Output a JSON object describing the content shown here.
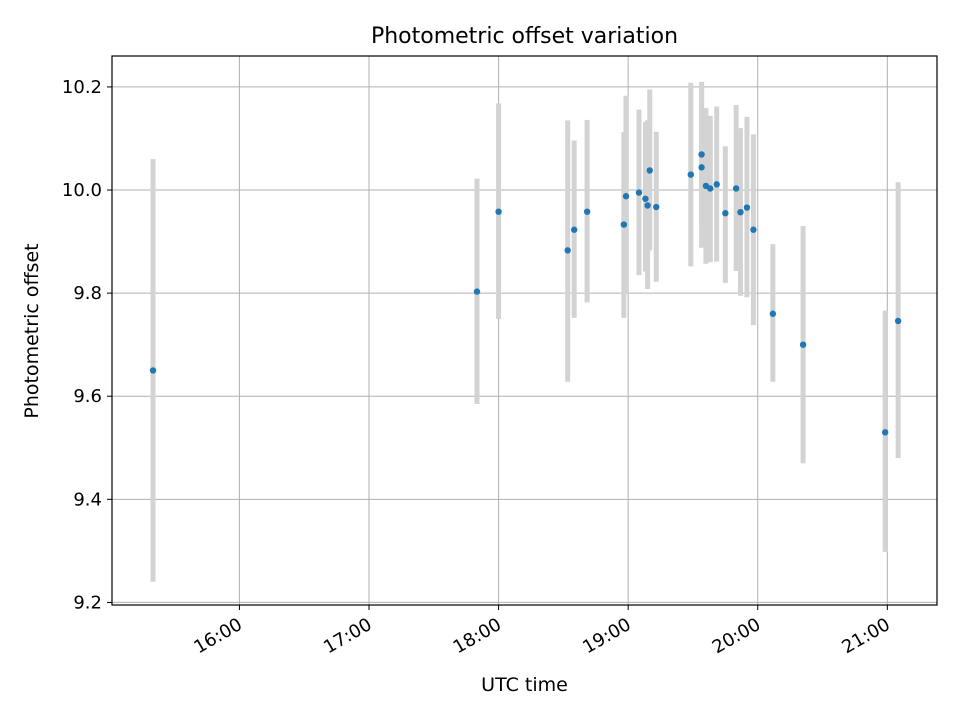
{
  "chart_data": {
    "type": "scatter",
    "title": "Photometric offset variation",
    "xlabel": "UTC time",
    "ylabel": "Photometric offset",
    "x_axis_format": "time",
    "xlim": [
      "15:01",
      "21:23"
    ],
    "ylim": [
      9.195,
      10.26
    ],
    "grid": true,
    "xticks": [
      "16:00",
      "17:00",
      "18:00",
      "19:00",
      "20:00",
      "21:00"
    ],
    "yticks": [
      "9.2",
      "9.4",
      "9.6",
      "9.8",
      "10.0",
      "10.2"
    ],
    "colors": {
      "points": "#1f77b4",
      "errorbars": "#d3d3d3",
      "grid": "#b0b0b0",
      "axes": "#000000"
    },
    "points": [
      {
        "t": "15:20",
        "y": 9.65,
        "low": 9.24,
        "high": 10.06
      },
      {
        "t": "17:50",
        "y": 9.803,
        "low": 9.585,
        "high": 10.022
      },
      {
        "t": "18:00",
        "y": 9.958,
        "low": 9.75,
        "high": 10.168
      },
      {
        "t": "18:32",
        "y": 9.883,
        "low": 9.628,
        "high": 10.135
      },
      {
        "t": "18:35",
        "y": 9.923,
        "low": 9.752,
        "high": 10.096
      },
      {
        "t": "18:41",
        "y": 9.958,
        "low": 9.782,
        "high": 10.136
      },
      {
        "t": "18:58",
        "y": 9.933,
        "low": 9.752,
        "high": 10.112
      },
      {
        "t": "18:59",
        "y": 9.988,
        "low": 9.798,
        "high": 10.183
      },
      {
        "t": "19:05",
        "y": 9.995,
        "low": 9.835,
        "high": 10.156
      },
      {
        "t": "19:08",
        "y": 9.983,
        "low": 9.842,
        "high": 10.132
      },
      {
        "t": "19:09",
        "y": 9.97,
        "low": 9.808,
        "high": 10.135
      },
      {
        "t": "19:10",
        "y": 10.038,
        "low": 9.883,
        "high": 10.195
      },
      {
        "t": "19:13",
        "y": 9.967,
        "low": 9.822,
        "high": 10.113
      },
      {
        "t": "19:29",
        "y": 10.03,
        "low": 9.852,
        "high": 10.208
      },
      {
        "t": "19:34",
        "y": 10.069,
        "low": 9.93,
        "high": 10.21
      },
      {
        "t": "19:34",
        "y": 10.044,
        "low": 9.888,
        "high": 10.199
      },
      {
        "t": "19:36",
        "y": 10.008,
        "low": 9.857,
        "high": 10.159
      },
      {
        "t": "19:38",
        "y": 10.003,
        "low": 9.86,
        "high": 10.144
      },
      {
        "t": "19:41",
        "y": 10.011,
        "low": 9.861,
        "high": 10.162
      },
      {
        "t": "19:45",
        "y": 9.955,
        "low": 9.82,
        "high": 10.085
      },
      {
        "t": "19:50",
        "y": 10.003,
        "low": 9.843,
        "high": 10.165
      },
      {
        "t": "19:52",
        "y": 9.957,
        "low": 9.795,
        "high": 10.12
      },
      {
        "t": "19:55",
        "y": 9.966,
        "low": 9.792,
        "high": 10.142
      },
      {
        "t": "19:58",
        "y": 9.923,
        "low": 9.738,
        "high": 10.108
      },
      {
        "t": "20:07",
        "y": 9.76,
        "low": 9.628,
        "high": 9.895
      },
      {
        "t": "20:21",
        "y": 9.7,
        "low": 9.47,
        "high": 9.93
      },
      {
        "t": "20:59",
        "y": 9.53,
        "low": 9.298,
        "high": 9.766
      },
      {
        "t": "21:05",
        "y": 9.746,
        "low": 9.48,
        "high": 10.015
      }
    ]
  }
}
